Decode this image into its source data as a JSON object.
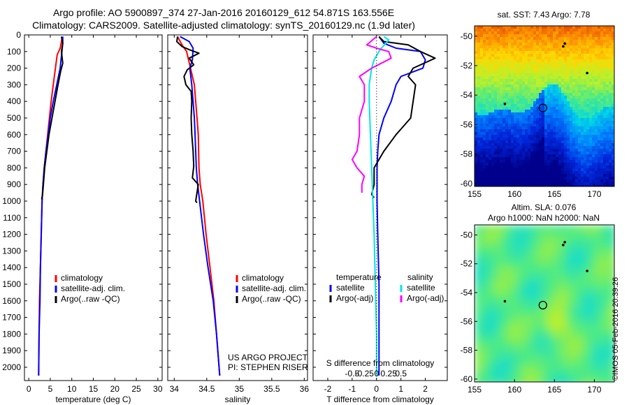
{
  "header": {
    "title_line1": "Argo profile: AO 5900897_374 27-Jan-2016 20160129_612 54.871S 163.556E",
    "title_line2": "Climatology: CARS2009. Satellite-adjusted climatology: synTS_20160129.nc (1.9d later)"
  },
  "stamp": "©IMOS 05-Feb-2016 20:39:26",
  "colors": {
    "climatology": "#ff0000",
    "satellite": "#0000ff",
    "argo": "#000000",
    "sat_salinity": "#00e5e5",
    "argo_salinity": "#ff00ff"
  },
  "chart_data": [
    {
      "type": "line",
      "xlabel": "temperature (deg C)",
      "ylabel": "",
      "xlim": [
        -1,
        31
      ],
      "ylim": [
        2080,
        0
      ],
      "xticks": [
        0,
        5,
        10,
        15,
        20,
        25,
        30
      ],
      "yticks": [
        0,
        100,
        200,
        300,
        400,
        500,
        600,
        700,
        800,
        900,
        1000,
        1100,
        1200,
        1300,
        1400,
        1500,
        1600,
        1700,
        1800,
        1900,
        2000
      ],
      "legend": {
        "position": "lower-center",
        "entries": [
          "climatology",
          "satellite-adj. clim.",
          "Argo(..raw -QC)"
        ]
      },
      "series": [
        {
          "name": "climatology",
          "color": "#ff0000",
          "points": [
            [
              7.8,
              10
            ],
            [
              7.6,
              40
            ],
            [
              7.3,
              80
            ],
            [
              6.6,
              120
            ],
            [
              6.2,
              200
            ],
            [
              5.7,
              300
            ],
            [
              5.2,
              400
            ],
            [
              4.8,
              500
            ],
            [
              4.4,
              600
            ],
            [
              4.0,
              700
            ],
            [
              3.6,
              800
            ],
            [
              3.3,
              900
            ],
            [
              3.1,
              1000
            ],
            [
              2.9,
              1200
            ],
            [
              2.7,
              1400
            ],
            [
              2.5,
              1600
            ],
            [
              2.4,
              1800
            ],
            [
              2.3,
              2050
            ]
          ]
        },
        {
          "name": "satellite-adj. clim.",
          "color": "#0000ff",
          "points": [
            [
              7.9,
              10
            ],
            [
              7.9,
              50
            ],
            [
              7.7,
              100
            ],
            [
              7.5,
              150
            ],
            [
              7.3,
              200
            ],
            [
              6.5,
              300
            ],
            [
              5.7,
              400
            ],
            [
              5.0,
              500
            ],
            [
              4.5,
              600
            ],
            [
              4.0,
              700
            ],
            [
              3.6,
              800
            ],
            [
              3.3,
              900
            ],
            [
              3.1,
              1000
            ],
            [
              2.9,
              1200
            ],
            [
              2.7,
              1400
            ],
            [
              2.6,
              1600
            ],
            [
              2.4,
              1800
            ],
            [
              2.3,
              2050
            ]
          ]
        },
        {
          "name": "Argo(..raw -QC)",
          "color": "#000000",
          "points": [
            [
              7.6,
              10
            ],
            [
              7.9,
              50
            ],
            [
              7.6,
              100
            ],
            [
              7.9,
              170
            ],
            [
              7.4,
              220
            ],
            [
              6.8,
              300
            ],
            [
              6.1,
              400
            ],
            [
              5.4,
              500
            ],
            [
              4.7,
              600
            ],
            [
              4.2,
              700
            ],
            [
              3.7,
              800
            ],
            [
              3.4,
              900
            ],
            [
              3.2,
              960
            ],
            [
              3.0,
              990
            ]
          ]
        }
      ]
    },
    {
      "type": "line",
      "xlabel": "salinity",
      "xlim": [
        33.9,
        36.05
      ],
      "ylim": [
        2080,
        0
      ],
      "xticks": [
        34,
        34.5,
        35,
        35.5,
        36
      ],
      "legend": {
        "position": "lower-right",
        "entries": [
          "climatology",
          "satellite-adj. clim.",
          "Argo(..raw -QC)"
        ]
      },
      "annotation": [
        "US ARGO PROJECT",
        "PI: STEPHEN RISER"
      ],
      "series": [
        {
          "name": "climatology",
          "color": "#ff0000",
          "points": [
            [
              34.05,
              10
            ],
            [
              34.12,
              60
            ],
            [
              34.19,
              100
            ],
            [
              34.25,
              200
            ],
            [
              34.31,
              300
            ],
            [
              34.35,
              500
            ],
            [
              34.37,
              600
            ],
            [
              34.38,
              800
            ],
            [
              34.4,
              900
            ],
            [
              34.44,
              1000
            ],
            [
              34.49,
              1200
            ],
            [
              34.55,
              1400
            ],
            [
              34.61,
              1600
            ],
            [
              34.65,
              1800
            ],
            [
              34.7,
              2050
            ]
          ]
        },
        {
          "name": "satellite-adj. clim.",
          "color": "#0000ff",
          "points": [
            [
              34.09,
              10
            ],
            [
              34.23,
              40
            ],
            [
              34.29,
              80
            ],
            [
              34.28,
              150
            ],
            [
              34.24,
              200
            ],
            [
              34.27,
              300
            ],
            [
              34.31,
              500
            ],
            [
              34.32,
              600
            ],
            [
              34.33,
              700
            ],
            [
              34.34,
              800
            ],
            [
              34.36,
              900
            ],
            [
              34.39,
              1000
            ],
            [
              34.45,
              1200
            ],
            [
              34.52,
              1400
            ],
            [
              34.6,
              1600
            ],
            [
              34.65,
              1800
            ],
            [
              34.7,
              2050
            ]
          ]
        },
        {
          "name": "Argo(..raw -QC)",
          "color": "#000000",
          "points": [
            [
              34.05,
              10
            ],
            [
              34.04,
              40
            ],
            [
              34.12,
              70
            ],
            [
              34.24,
              90
            ],
            [
              34.38,
              110
            ],
            [
              34.23,
              140
            ],
            [
              34.3,
              180
            ],
            [
              34.2,
              210
            ],
            [
              34.15,
              250
            ],
            [
              34.18,
              300
            ],
            [
              34.26,
              340
            ],
            [
              34.27,
              400
            ],
            [
              34.26,
              500
            ],
            [
              34.27,
              600
            ],
            [
              34.29,
              700
            ],
            [
              34.3,
              790
            ],
            [
              34.28,
              860
            ],
            [
              34.37,
              900
            ],
            [
              34.33,
              1000
            ],
            [
              34.35,
              1010
            ]
          ]
        }
      ]
    },
    {
      "type": "line",
      "xlabel": "T difference from climatology",
      "xlabel_top": "S difference from climatology",
      "xlim": [
        -2.6,
        2.9
      ],
      "ylim": [
        2080,
        0
      ],
      "xticks": [
        -2,
        -1,
        0,
        1,
        2
      ],
      "xticks_top_labels": [
        "-0.5",
        "-0.25",
        "0",
        "0.25",
        "0.5"
      ],
      "legend": {
        "position": "lower-center",
        "headers": [
          "temperature",
          "salinity"
        ],
        "entries": [
          "satellite",
          "Argo(-adj)",
          "satellite",
          "Argo(-adj)"
        ]
      },
      "series": [
        {
          "name": "temperature satellite",
          "color": "#0000ff",
          "points": [
            [
              0.1,
              10
            ],
            [
              0.3,
              50
            ],
            [
              0.8,
              80
            ],
            [
              1.8,
              100
            ],
            [
              2.0,
              150
            ],
            [
              1.9,
              200
            ],
            [
              1.0,
              250
            ],
            [
              0.8,
              300
            ],
            [
              0.6,
              400
            ],
            [
              0.3,
              500
            ],
            [
              0.1,
              600
            ],
            [
              0.05,
              700
            ],
            [
              0.02,
              800
            ],
            [
              0.02,
              1000
            ],
            [
              0.05,
              1200
            ],
            [
              0.1,
              1500
            ],
            [
              0.1,
              1800
            ],
            [
              0.1,
              2050
            ]
          ]
        },
        {
          "name": "temperature Argo(-adj)",
          "color": "#000000",
          "points": [
            [
              0.1,
              10
            ],
            [
              0.3,
              40
            ],
            [
              1.3,
              60
            ],
            [
              1.8,
              100
            ],
            [
              2.4,
              140
            ],
            [
              2.1,
              160
            ],
            [
              1.5,
              200
            ],
            [
              1.3,
              250
            ],
            [
              1.6,
              300
            ],
            [
              1.5,
              400
            ],
            [
              1.4,
              500
            ],
            [
              1.1,
              550
            ],
            [
              0.8,
              600
            ],
            [
              0.3,
              700
            ],
            [
              -0.1,
              800
            ],
            [
              -0.1,
              900
            ],
            [
              -0.2,
              960
            ],
            [
              -0.1,
              980
            ]
          ]
        },
        {
          "name": "salinity satellite",
          "color": "#00e5e5",
          "points": [
            [
              0.3,
              10
            ],
            [
              0.5,
              30
            ],
            [
              0.2,
              80
            ],
            [
              0.1,
              100
            ],
            [
              -0.1,
              150
            ],
            [
              -0.2,
              200
            ],
            [
              -0.3,
              300
            ],
            [
              -0.3,
              400
            ],
            [
              -0.25,
              600
            ],
            [
              -0.2,
              800
            ],
            [
              -0.15,
              1000
            ],
            [
              -0.1,
              1200
            ],
            [
              -0.05,
              1500
            ],
            [
              0.0,
              1800
            ],
            [
              0.0,
              2050
            ]
          ]
        },
        {
          "name": "salinity Argo(-adj)",
          "color": "#ff00ff",
          "points": [
            [
              0.0,
              10
            ],
            [
              -0.4,
              60
            ],
            [
              0.0,
              80
            ],
            [
              0.5,
              100
            ],
            [
              0.6,
              140
            ],
            [
              -0.2,
              200
            ],
            [
              -0.7,
              250
            ],
            [
              -0.5,
              300
            ],
            [
              -0.5,
              400
            ],
            [
              -0.7,
              500
            ],
            [
              -0.7,
              600
            ],
            [
              -0.8,
              700
            ],
            [
              -1.0,
              750
            ],
            [
              -0.8,
              800
            ],
            [
              -0.5,
              850
            ],
            [
              -0.6,
              900
            ],
            [
              -0.6,
              950
            ]
          ]
        }
      ]
    },
    {
      "type": "heatmap",
      "title": "sat. SST: 7.43 Argo: 7.78",
      "xlim": [
        155,
        172.5
      ],
      "ylim": [
        -60.2,
        -49.3
      ],
      "xticks": [
        155,
        160,
        165,
        170
      ],
      "yticks": [
        -50,
        -52,
        -54,
        -56,
        -58,
        -60
      ],
      "marker": {
        "lon": 163.556,
        "lat": -54.871,
        "shape": "open circle"
      }
    },
    {
      "type": "heatmap",
      "title": "Altim. SLA: 0.076",
      "subtitle": "Argo h1000: NaN h2000: NaN",
      "xlim": [
        155,
        172.5
      ],
      "ylim": [
        -60.2,
        -49.3
      ],
      "xticks": [
        155,
        160,
        165,
        170
      ],
      "yticks": [
        -50,
        -52,
        -54,
        -56,
        -58,
        -60
      ],
      "marker": {
        "lon": 163.556,
        "lat": -54.871,
        "shape": "open circle"
      }
    }
  ]
}
